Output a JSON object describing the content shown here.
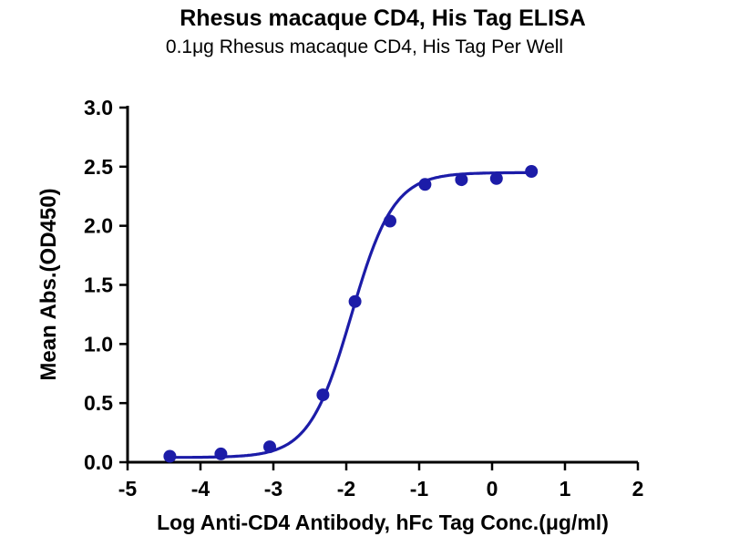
{
  "chart_data": {
    "type": "scatter",
    "title": "Rhesus macaque CD4, His Tag ELISA",
    "subtitle": "0.1μg Rhesus macaque CD4, His Tag Per Well",
    "xlabel": "Log Anti-CD4 Antibody, hFc Tag Conc.(μg/ml)",
    "ylabel": "Mean Abs.(OD450)",
    "xlim": [
      -5,
      2
    ],
    "ylim": [
      0,
      3
    ],
    "grid": false,
    "legend": "none",
    "x_ticks": [
      {
        "v": -5,
        "label": "-5"
      },
      {
        "v": -4,
        "label": "-4"
      },
      {
        "v": -3,
        "label": "-3"
      },
      {
        "v": -2,
        "label": "-2"
      },
      {
        "v": -1,
        "label": "-1"
      },
      {
        "v": 0,
        "label": "0"
      },
      {
        "v": 1,
        "label": "1"
      },
      {
        "v": 2,
        "label": "2"
      }
    ],
    "y_ticks": [
      {
        "v": 0.0,
        "label": "0.0"
      },
      {
        "v": 0.5,
        "label": "0.5"
      },
      {
        "v": 1.0,
        "label": "1.0"
      },
      {
        "v": 1.5,
        "label": "1.5"
      },
      {
        "v": 2.0,
        "label": "2.0"
      },
      {
        "v": 2.5,
        "label": "2.5"
      },
      {
        "v": 3.0,
        "label": "3.0"
      }
    ],
    "series": [
      {
        "name": "Anti-CD4 Antibody, hFc Tag",
        "color": "#1c1ca8",
        "points": [
          {
            "x": -4.42,
            "y": 0.05
          },
          {
            "x": -3.72,
            "y": 0.07
          },
          {
            "x": -3.05,
            "y": 0.13
          },
          {
            "x": -2.32,
            "y": 0.57
          },
          {
            "x": -1.88,
            "y": 1.36
          },
          {
            "x": -1.4,
            "y": 2.04
          },
          {
            "x": -0.92,
            "y": 2.35
          },
          {
            "x": -0.42,
            "y": 2.39
          },
          {
            "x": 0.06,
            "y": 2.4
          },
          {
            "x": 0.54,
            "y": 2.46
          }
        ]
      }
    ],
    "fit": {
      "type": "4PL",
      "bottom": 0.04,
      "top": 2.45,
      "logEC50": -1.93,
      "hill": 1.5
    }
  }
}
